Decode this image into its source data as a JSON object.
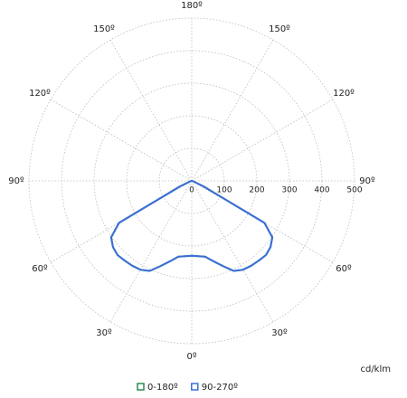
{
  "chart_data": {
    "type": "polar",
    "unit_label": "cd/klm",
    "rlim": [
      0,
      500
    ],
    "rticks": [
      0,
      100,
      200,
      300,
      400,
      500
    ],
    "angle_ticks": [
      {
        "value": 0,
        "label": "0º"
      },
      {
        "value": 30,
        "label": "30º"
      },
      {
        "value": 60,
        "label": "60º"
      },
      {
        "value": 90,
        "label": "90º"
      },
      {
        "value": 120,
        "label": "120º"
      },
      {
        "value": 150,
        "label": "150º"
      },
      {
        "value": 180,
        "label": "180º"
      }
    ],
    "grid": true,
    "x": [
      0,
      5,
      10,
      15,
      20,
      25,
      30,
      35,
      40,
      45,
      50,
      55,
      60,
      65,
      70,
      75,
      80,
      85,
      90
    ],
    "series": [
      {
        "name": "0-180º",
        "color": "#2e8b57",
        "values": [
          230,
          232,
          236,
          255,
          278,
          305,
          315,
          318,
          320,
          322,
          316,
          302,
          258,
          40,
          8,
          4,
          2,
          1,
          0
        ]
      },
      {
        "name": "90-270º",
        "color": "#3b6fd8",
        "values": [
          230,
          232,
          236,
          255,
          278,
          305,
          315,
          318,
          320,
          322,
          316,
          302,
          258,
          40,
          8,
          4,
          2,
          1,
          0
        ]
      }
    ]
  }
}
